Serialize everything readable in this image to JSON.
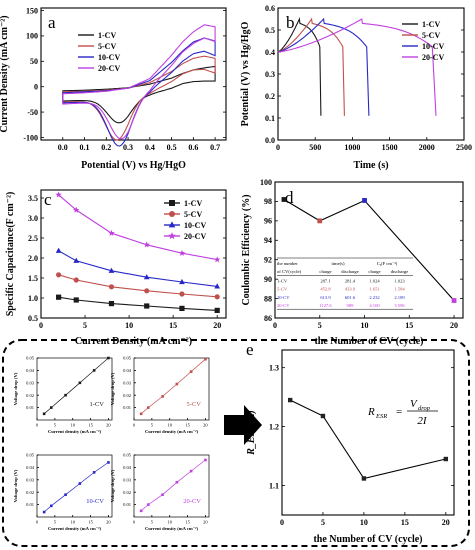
{
  "colors": {
    "cv1": "#1a1a1a",
    "cv5": "#c0504d",
    "cv10": "#2828c8",
    "cv20": "#c040e0",
    "axis": "#000000",
    "dash": "#000000"
  },
  "chart_data": [
    {
      "id": "a",
      "panel_label": "a",
      "type": "line",
      "xlabel": "Potential (V) vs Hg/HgO",
      "ylabel": "Current Density (mA cm⁻²)",
      "xlim": [
        -0.1,
        0.75
      ],
      "ylim": [
        -105,
        155
      ],
      "xticks": [
        0.0,
        0.1,
        0.2,
        0.3,
        0.4,
        0.5,
        0.6,
        0.7
      ],
      "xtick_labels": [
        "0.0",
        "0.1",
        "0.2",
        "0.3",
        "0.4",
        "0.5",
        "0.6",
        "0.7"
      ],
      "yticks": [
        -100,
        -50,
        0,
        50,
        100,
        150
      ],
      "ytick_labels": [
        "-100",
        "-50",
        "0",
        "50",
        "100",
        "150"
      ],
      "legend_position": "top-left",
      "series": [
        {
          "name": "1-CV",
          "color_key": "cv1",
          "ref": 0.26,
          "anod": [
            [
              0.0,
              -8
            ],
            [
              0.1,
              -7
            ],
            [
              0.2,
              -5
            ],
            [
              0.3,
              -2
            ],
            [
              0.4,
              5
            ],
            [
              0.5,
              17
            ],
            [
              0.55,
              26
            ],
            [
              0.6,
              33
            ],
            [
              0.65,
              37
            ],
            [
              0.7,
              40
            ]
          ],
          "peak": -48
        },
        {
          "name": "5-CV",
          "color_key": "cv5",
          "ref": 0.25,
          "anod": [
            [
              0.0,
              -10
            ],
            [
              0.1,
              -9
            ],
            [
              0.2,
              -7
            ],
            [
              0.3,
              -3
            ],
            [
              0.4,
              8
            ],
            [
              0.5,
              30
            ],
            [
              0.55,
              45
            ],
            [
              0.6,
              56
            ],
            [
              0.65,
              60
            ],
            [
              0.7,
              56
            ]
          ],
          "peak": -80
        },
        {
          "name": "10-CV",
          "color_key": "cv10",
          "ref": 0.26,
          "anod": [
            [
              0.0,
              -12
            ],
            [
              0.1,
              -10
            ],
            [
              0.2,
              -8
            ],
            [
              0.3,
              -3
            ],
            [
              0.4,
              12
            ],
            [
              0.5,
              48
            ],
            [
              0.55,
              70
            ],
            [
              0.6,
              88
            ],
            [
              0.65,
              96
            ],
            [
              0.7,
              90
            ]
          ],
          "peak": -92
        },
        {
          "name": "20-CV",
          "color_key": "cv20",
          "ref": 0.27,
          "anod": [
            [
              0.0,
              -14
            ],
            [
              0.1,
              -12
            ],
            [
              0.2,
              -9
            ],
            [
              0.3,
              -3
            ],
            [
              0.4,
              16
            ],
            [
              0.5,
              62
            ],
            [
              0.55,
              88
            ],
            [
              0.6,
              108
            ],
            [
              0.65,
              122
            ],
            [
              0.7,
              118
            ]
          ],
          "peak": -78
        }
      ]
    },
    {
      "id": "b",
      "panel_label": "b",
      "type": "line",
      "xlabel": "Time (s)",
      "ylabel": "Potential (V) vs Hg/HgO",
      "xlim": [
        0,
        2500
      ],
      "ylim": [
        0.0,
        0.6
      ],
      "xticks": [
        0,
        500,
        1000,
        1500,
        2000,
        2500
      ],
      "xtick_labels": [
        "0",
        "500",
        "1000",
        "1500",
        "2000",
        "2500"
      ],
      "yticks": [
        0.0,
        0.1,
        0.2,
        0.3,
        0.4,
        0.5,
        0.6
      ],
      "ytick_labels": [
        "0.0",
        "0.1",
        "0.2",
        "0.3",
        "0.4",
        "0.5",
        "0.6"
      ],
      "legend_position": "top-right",
      "series": [
        {
          "name": "1-CV",
          "color_key": "cv1",
          "t_charge": 287,
          "t_discharge": 281
        },
        {
          "name": "5-CV",
          "color_key": "cv5",
          "t_charge": 452,
          "t_discharge": 433
        },
        {
          "name": "10-CV",
          "color_key": "cv10",
          "t_charge": 613,
          "t_discharge": 601
        },
        {
          "name": "20-CV",
          "color_key": "cv20",
          "t_charge": 1127,
          "t_discharge": 989
        }
      ]
    },
    {
      "id": "c",
      "panel_label": "c",
      "type": "line",
      "xlabel": "Current Density (mA cm⁻²)",
      "ylabel": "Specific Capacitance(F cm⁻²)",
      "xlim": [
        0,
        21
      ],
      "ylim": [
        0.5,
        3.7
      ],
      "xticks": [
        0,
        5,
        10,
        15,
        20
      ],
      "xtick_labels": [
        "0",
        "5",
        "10",
        "15",
        "20"
      ],
      "yticks": [
        0.5,
        1.0,
        1.5,
        2.0,
        2.5,
        3.0,
        3.5
      ],
      "ytick_labels": [
        "0.5",
        "1.0",
        "1.5",
        "2.0",
        "2.5",
        "3.0",
        "3.5"
      ],
      "legend_position": "top-right",
      "x": [
        2,
        4,
        8,
        12,
        16,
        20
      ],
      "series": [
        {
          "name": "1-CV",
          "color_key": "cv1",
          "marker": "square",
          "values": [
            1.02,
            0.95,
            0.86,
            0.8,
            0.74,
            0.69
          ]
        },
        {
          "name": "5-CV",
          "color_key": "cv5",
          "marker": "circle",
          "values": [
            1.58,
            1.45,
            1.28,
            1.18,
            1.1,
            1.03
          ]
        },
        {
          "name": "10-CV",
          "color_key": "cv10",
          "marker": "triangle",
          "values": [
            2.18,
            1.93,
            1.68,
            1.52,
            1.4,
            1.29
          ]
        },
        {
          "name": "20-CV",
          "color_key": "cv20",
          "marker": "star",
          "values": [
            3.58,
            3.2,
            2.62,
            2.33,
            2.12,
            1.96
          ]
        }
      ]
    },
    {
      "id": "d",
      "panel_label": "d",
      "type": "line",
      "xlabel": "the Number of CV (cycle)",
      "ylabel": "Coulombic Efficiency (%)",
      "xlim": [
        0,
        21
      ],
      "ylim": [
        86,
        100
      ],
      "xticks": [
        0,
        5,
        10,
        15,
        20
      ],
      "xtick_labels": [
        "0",
        "5",
        "10",
        "15",
        "20"
      ],
      "yticks": [
        86,
        88,
        90,
        92,
        94,
        96,
        98,
        100
      ],
      "ytick_labels": [
        "86",
        "88",
        "90",
        "92",
        "94",
        "96",
        "98",
        "100"
      ],
      "x": [
        1,
        5,
        10,
        20
      ],
      "values": [
        98.2,
        96.0,
        98.1,
        87.8
      ],
      "point_colors": [
        "cv1",
        "cv5",
        "cv10",
        "cv20"
      ],
      "table": {
        "header1": [
          "the number",
          "time(s)",
          "",
          "Cₐ(F cm⁻²)",
          ""
        ],
        "header2": [
          "of CV(cycle)",
          "charge",
          "discharge",
          "charge",
          "discharge"
        ],
        "rows": [
          {
            "cells": [
              "1-CV",
              "287.1",
              "281.4",
              "1.024",
              "1.023"
            ],
            "color_key": "cv1"
          },
          {
            "cells": [
              "5-CV",
              "452.8",
              "433.9",
              "1.651",
              "1.584"
            ],
            "color_key": "cv5"
          },
          {
            "cells": [
              "10-CV",
              "613.9",
              "601.6",
              "2.232",
              "2.189"
            ],
            "color_key": "cv10"
          },
          {
            "cells": [
              "20-CV",
              "1127.6",
              "989",
              "4.100",
              "3.596"
            ],
            "color_key": "cv20"
          }
        ]
      }
    },
    {
      "id": "e",
      "panel_label": "e",
      "type": "line",
      "xlabel": "the Number of CV (cycle)",
      "ylabel": "R_ESR(Ω)",
      "xlim": [
        0,
        21
      ],
      "ylim": [
        1.05,
        1.33
      ],
      "xticks": [
        0,
        5,
        10,
        15,
        20
      ],
      "xtick_labels": [
        "0",
        "5",
        "10",
        "15",
        "20"
      ],
      "yticks": [
        1.1,
        1.2,
        1.3
      ],
      "ytick_labels": [
        "1.1",
        "1.2",
        "1.3"
      ],
      "x": [
        1,
        5,
        10,
        20
      ],
      "values": [
        1.245,
        1.218,
        1.112,
        1.145
      ],
      "equation": {
        "lhs": "R",
        "lhs_sub": "ESR",
        "eq": "=",
        "num": "V",
        "num_sub": "drop",
        "den": "2I"
      }
    },
    {
      "id": "insets",
      "type": "scatter",
      "xlabel": "Current density (mA cm⁻²)",
      "ylabel": "Voltage drop (V)",
      "xlim": [
        0,
        21
      ],
      "ylim": [
        0,
        0.05
      ],
      "xticks": [
        0,
        5,
        10,
        15,
        20
      ],
      "xtick_labels": [
        "0",
        "5",
        "10",
        "15",
        "20"
      ],
      "yticks": [
        0.01,
        0.02,
        0.03,
        0.04,
        0.05
      ],
      "ytick_labels": [
        "0.01",
        "0.02",
        "0.03",
        "0.04",
        "0.05"
      ],
      "x": [
        2,
        4,
        8,
        12,
        16,
        20
      ],
      "panels": [
        {
          "name": "1-CV",
          "color_key": "cv1",
          "values": [
            0.005,
            0.01,
            0.02,
            0.03,
            0.04,
            0.05
          ]
        },
        {
          "name": "5-CV",
          "color_key": "cv5",
          "values": [
            0.005,
            0.01,
            0.019,
            0.029,
            0.039,
            0.049
          ]
        },
        {
          "name": "10-CV",
          "color_key": "cv10",
          "values": [
            0.004,
            0.009,
            0.018,
            0.027,
            0.036,
            0.044
          ]
        },
        {
          "name": "20-CV",
          "color_key": "cv20",
          "values": [
            0.005,
            0.01,
            0.018,
            0.028,
            0.037,
            0.046
          ]
        }
      ]
    }
  ]
}
